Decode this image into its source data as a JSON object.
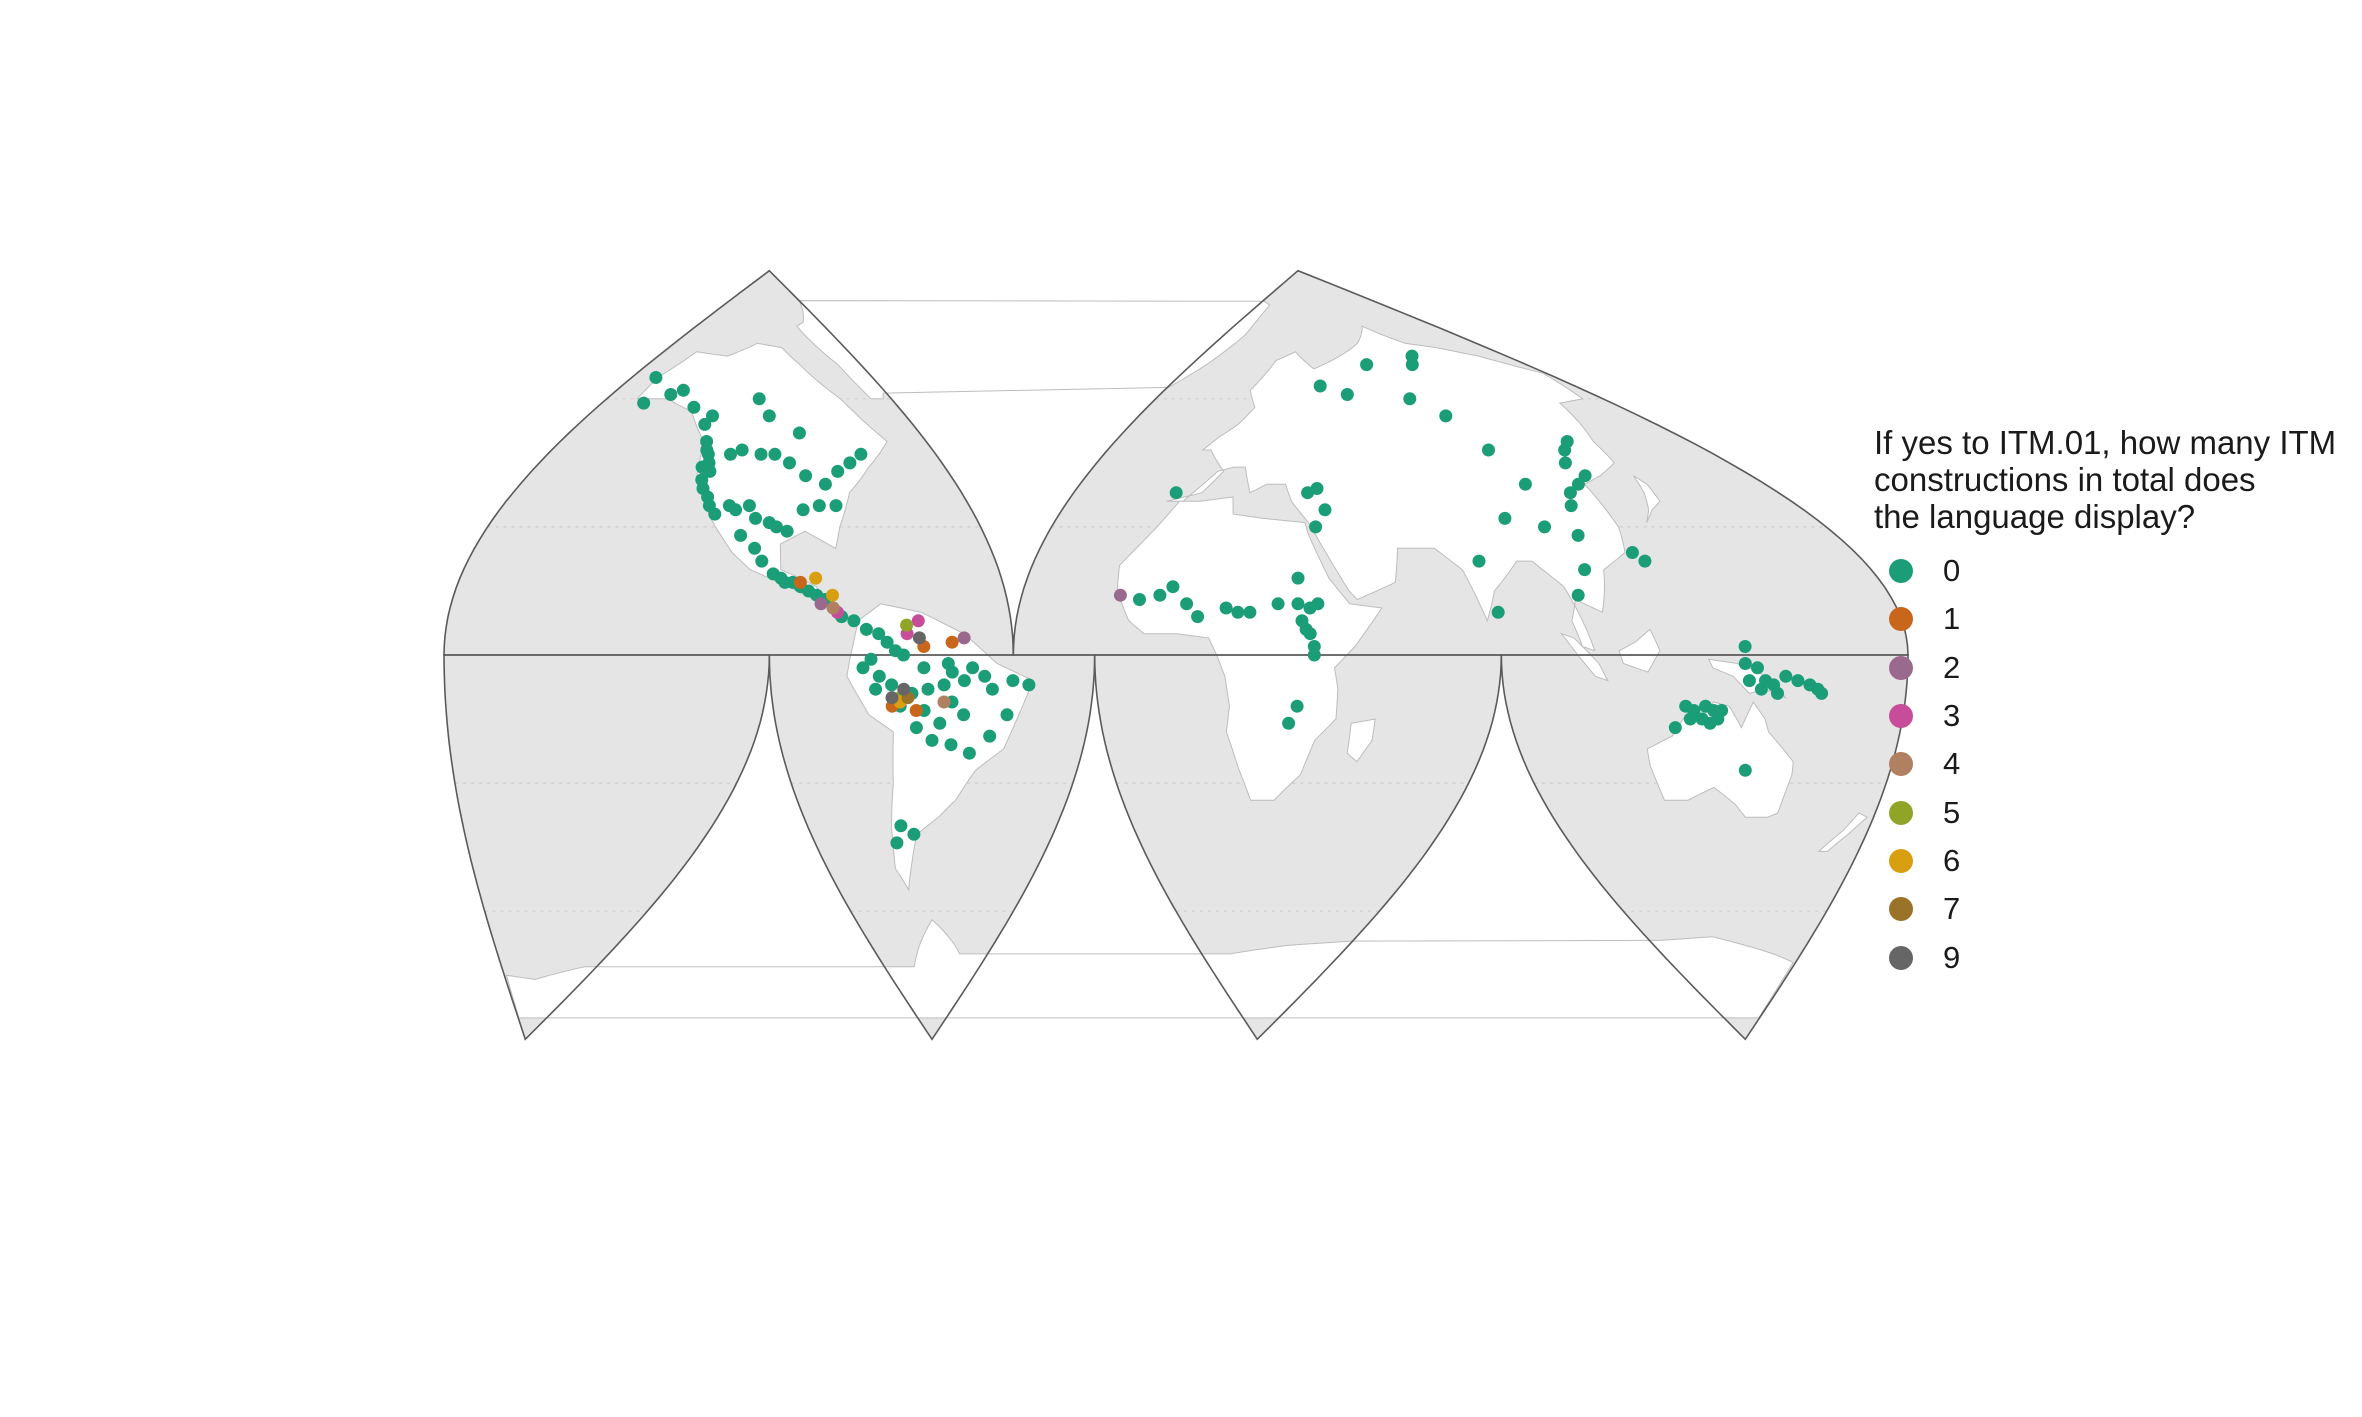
{
  "legend": {
    "title": "If yes to ITM.01, how many ITM\nconstructions in total does\nthe language display?",
    "items": [
      {
        "label": "0",
        "color": "#1b9e77"
      },
      {
        "label": "1",
        "color": "#c8661b"
      },
      {
        "label": "2",
        "color": "#9a6a8e"
      },
      {
        "label": "3",
        "color": "#c74c9a"
      },
      {
        "label": "4",
        "color": "#b08060"
      },
      {
        "label": "5",
        "color": "#90a428"
      },
      {
        "label": "6",
        "color": "#d8a010"
      },
      {
        "label": "7",
        "color": "#9a7328"
      },
      {
        "label": "9",
        "color": "#666666"
      }
    ]
  },
  "map_style": {
    "ocean_color": "#e5e5e5",
    "land_color": "#ffffff",
    "border_color": "#5a5a5a",
    "projection": "interrupted-goode-homolosine"
  },
  "points": [
    [
      "0",
      -166,
      65
    ],
    [
      "0",
      -160,
      59
    ],
    [
      "0",
      -150,
      61
    ],
    [
      "0",
      -145,
      62
    ],
    [
      "0",
      -135,
      58
    ],
    [
      "0",
      -125,
      56
    ],
    [
      "0",
      -127,
      54
    ],
    [
      "0",
      -124,
      50
    ],
    [
      "0",
      -123,
      48
    ],
    [
      "0",
      -122,
      47
    ],
    [
      "0",
      -121,
      45
    ],
    [
      "0",
      -123,
      44
    ],
    [
      "0",
      -120,
      43
    ],
    [
      "0",
      -122,
      41
    ],
    [
      "0",
      -121,
      39
    ],
    [
      "0",
      -119,
      37
    ],
    [
      "0",
      -118,
      35
    ],
    [
      "0",
      -116,
      33
    ],
    [
      "0",
      -112,
      35
    ],
    [
      "0",
      -110,
      34
    ],
    [
      "0",
      -106,
      35
    ],
    [
      "0",
      -104,
      32
    ],
    [
      "0",
      -100,
      31
    ],
    [
      "0",
      -98,
      30
    ],
    [
      "0",
      -95,
      29
    ],
    [
      "0",
      -90,
      34
    ],
    [
      "0",
      -85,
      35
    ],
    [
      "0",
      -80,
      35
    ],
    [
      "0",
      -82,
      40
    ],
    [
      "0",
      -88,
      42
    ],
    [
      "0",
      -93,
      45
    ],
    [
      "0",
      -98,
      47
    ],
    [
      "0",
      -103,
      47
    ],
    [
      "0",
      -110,
      48
    ],
    [
      "0",
      -114,
      47
    ],
    [
      "0",
      -72,
      45
    ],
    [
      "0",
      -67,
      47
    ],
    [
      "0",
      -77,
      43
    ],
    [
      "0",
      -100,
      56
    ],
    [
      "0",
      -88,
      52
    ],
    [
      "0",
      -105,
      60
    ],
    [
      "0",
      -108,
      28
    ],
    [
      "0",
      -104,
      25
    ],
    [
      "0",
      -102,
      22
    ],
    [
      "0",
      -99,
      19
    ],
    [
      "0",
      -97,
      18
    ],
    [
      "0",
      -96,
      17
    ],
    [
      "0",
      -94,
      17
    ],
    [
      "0",
      -92,
      16
    ],
    [
      "0",
      -90,
      15
    ],
    [
      "0",
      -88,
      14
    ],
    [
      "0",
      -86,
      13
    ],
    [
      "0",
      -84,
      11
    ],
    [
      "0",
      -82,
      9
    ],
    [
      "0",
      -79,
      8
    ],
    [
      "0",
      -76,
      6
    ],
    [
      "0",
      -73,
      5
    ],
    [
      "0",
      -71,
      3
    ],
    [
      "0",
      -69,
      1
    ],
    [
      "0",
      -67,
      0
    ],
    [
      "0",
      -75,
      -1
    ],
    [
      "0",
      -77,
      -3
    ],
    [
      "0",
      -73,
      -5
    ],
    [
      "0",
      -70,
      -7
    ],
    [
      "0",
      -65,
      -9
    ],
    [
      "0",
      -61,
      -8
    ],
    [
      "0",
      -57,
      -7
    ],
    [
      "0",
      -55,
      -4
    ],
    [
      "0",
      -52,
      -6
    ],
    [
      "0",
      -50,
      -3
    ],
    [
      "0",
      -47,
      -5
    ],
    [
      "0",
      -45,
      -8
    ],
    [
      "0",
      -40,
      -6
    ],
    [
      "0",
      -36,
      -7
    ],
    [
      "0",
      -55,
      -11
    ],
    [
      "0",
      -52,
      -14
    ],
    [
      "0",
      -58,
      -16
    ],
    [
      "0",
      -62,
      -13
    ],
    [
      "0",
      -64,
      -17
    ],
    [
      "0",
      -60,
      -20
    ],
    [
      "0",
      -55,
      -21
    ],
    [
      "0",
      -50,
      -23
    ],
    [
      "0",
      -45,
      -19
    ],
    [
      "0",
      -41,
      -14
    ],
    [
      "0",
      -70,
      -40
    ],
    [
      "0",
      -66,
      -42
    ],
    [
      "0",
      -72,
      -44
    ],
    [
      "0",
      -74,
      -8
    ],
    [
      "0",
      -68,
      -12
    ],
    [
      "0",
      -56,
      -2
    ],
    [
      "0",
      -62,
      -3
    ],
    [
      "1",
      -70,
      -12
    ],
    [
      "1",
      -62,
      2
    ],
    [
      "1",
      -55,
      3
    ],
    [
      "1",
      -64,
      -13
    ],
    [
      "1",
      -92,
      17
    ],
    [
      "2",
      -87,
      12
    ],
    [
      "2",
      -52,
      4
    ],
    [
      "2",
      -15,
      14
    ],
    [
      "3",
      -83,
      10
    ],
    [
      "3",
      -66,
      5
    ],
    [
      "3",
      -63,
      8
    ],
    [
      "4",
      -57,
      -11
    ],
    [
      "4",
      -84,
      11
    ],
    [
      "5",
      -66,
      7
    ],
    [
      "5",
      -68,
      -10
    ],
    [
      "6",
      -84,
      14
    ],
    [
      "6",
      -88,
      18
    ],
    [
      "6",
      -68,
      -11
    ],
    [
      "7",
      -66,
      -10
    ],
    [
      "9",
      -67,
      -8
    ],
    [
      "9",
      -63,
      4
    ],
    [
      "9",
      -70,
      -10
    ],
    [
      "0",
      -8,
      38
    ],
    [
      "0",
      33,
      38
    ],
    [
      "0",
      36,
      39
    ],
    [
      "0",
      38,
      34
    ],
    [
      "0",
      35,
      30
    ],
    [
      "0",
      -10,
      13
    ],
    [
      "0",
      -5,
      14
    ],
    [
      "0",
      -2,
      16
    ],
    [
      "0",
      2,
      12
    ],
    [
      "0",
      5,
      9
    ],
    [
      "0",
      12,
      11
    ],
    [
      "0",
      15,
      10
    ],
    [
      "0",
      18,
      10
    ],
    [
      "0",
      25,
      12
    ],
    [
      "0",
      30,
      12
    ],
    [
      "0",
      33,
      11
    ],
    [
      "0",
      35,
      12
    ],
    [
      "0",
      30,
      18
    ],
    [
      "0",
      31,
      8
    ],
    [
      "0",
      32,
      6
    ],
    [
      "0",
      33,
      5
    ],
    [
      "0",
      34,
      2
    ],
    [
      "0",
      34,
      0
    ],
    [
      "0",
      30,
      -12
    ],
    [
      "0",
      28,
      -16
    ],
    [
      "0",
      42,
      63
    ],
    [
      "0",
      55,
      61
    ],
    [
      "0",
      75,
      68
    ],
    [
      "0",
      85,
      60
    ],
    [
      "0",
      95,
      56
    ],
    [
      "0",
      105,
      68
    ],
    [
      "0",
      112,
      70
    ],
    [
      "0",
      100,
      48
    ],
    [
      "0",
      103,
      40
    ],
    [
      "0",
      90,
      32
    ],
    [
      "0",
      100,
      30
    ],
    [
      "0",
      108,
      28
    ],
    [
      "0",
      112,
      35
    ],
    [
      "0",
      115,
      38
    ],
    [
      "0",
      120,
      40
    ],
    [
      "0",
      123,
      45
    ],
    [
      "0",
      125,
      42
    ],
    [
      "0",
      128,
      48
    ],
    [
      "0",
      133,
      50
    ],
    [
      "0",
      78,
      22
    ],
    [
      "0",
      80,
      10
    ],
    [
      "0",
      105,
      20
    ],
    [
      "0",
      101,
      14
    ],
    [
      "0",
      120,
      24
    ],
    [
      "0",
      122,
      22
    ],
    [
      "0",
      140,
      2
    ],
    [
      "0",
      140,
      -2
    ],
    [
      "0",
      143,
      -3
    ],
    [
      "0",
      145,
      -6
    ],
    [
      "0",
      147,
      -7
    ],
    [
      "0",
      150,
      -5
    ],
    [
      "0",
      153,
      -6
    ],
    [
      "0",
      156,
      -7
    ],
    [
      "0",
      158,
      -8
    ],
    [
      "0",
      159,
      -9
    ],
    [
      "0",
      141,
      -6
    ],
    [
      "0",
      144,
      -8
    ],
    [
      "0",
      148,
      -9
    ],
    [
      "0",
      125,
      -12
    ],
    [
      "0",
      127,
      -13
    ],
    [
      "0",
      130,
      -12
    ],
    [
      "0",
      132,
      -13
    ],
    [
      "0",
      133,
      -15
    ],
    [
      "0",
      131,
      -16
    ],
    [
      "0",
      129,
      -15
    ],
    [
      "0",
      134,
      -13
    ],
    [
      "0",
      126,
      -15
    ],
    [
      "0",
      122,
      -17
    ],
    [
      "0",
      140,
      -27
    ]
  ]
}
